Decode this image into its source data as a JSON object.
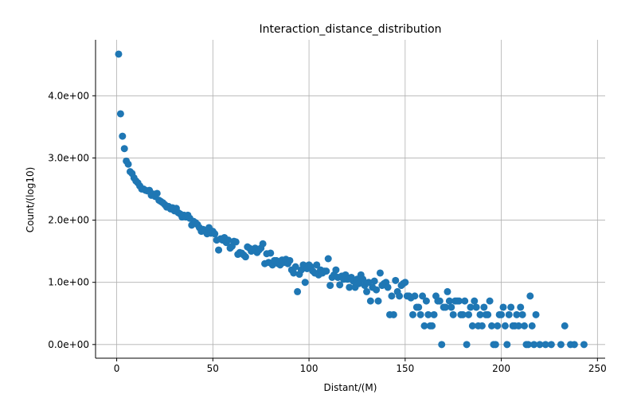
{
  "chart_data": {
    "type": "scatter",
    "title": "Interaction_distance_distribution",
    "xlabel": "Distant/(M)",
    "ylabel": "Count/(log10)",
    "xlim": [
      -11,
      254
    ],
    "ylim": [
      -0.22,
      4.9
    ],
    "x_ticks": [
      0,
      50,
      100,
      150,
      200,
      250
    ],
    "x_tick_labels": [
      "0",
      "50",
      "100",
      "150",
      "200",
      "250"
    ],
    "y_ticks": [
      0,
      1,
      2,
      3,
      4
    ],
    "y_tick_labels": [
      "0.0e+00",
      "1.0e+00",
      "2.0e+00",
      "3.0e+00",
      "4.0e+00"
    ],
    "grid": true,
    "marker_color": "#1f77b4",
    "points": [
      [
        1,
        4.67
      ],
      [
        2,
        3.71
      ],
      [
        3,
        3.35
      ],
      [
        4,
        3.15
      ],
      [
        5,
        2.95
      ],
      [
        6,
        2.9
      ],
      [
        7,
        2.78
      ],
      [
        8,
        2.75
      ],
      [
        9,
        2.68
      ],
      [
        10,
        2.63
      ],
      [
        11,
        2.6
      ],
      [
        12,
        2.55
      ],
      [
        13,
        2.5
      ],
      [
        14,
        2.5
      ],
      [
        15,
        2.48
      ],
      [
        16,
        2.47
      ],
      [
        17,
        2.48
      ],
      [
        18,
        2.4
      ],
      [
        19,
        2.42
      ],
      [
        20,
        2.38
      ],
      [
        21,
        2.43
      ],
      [
        22,
        2.32
      ],
      [
        23,
        2.3
      ],
      [
        24,
        2.28
      ],
      [
        25,
        2.25
      ],
      [
        26,
        2.21
      ],
      [
        27,
        2.22
      ],
      [
        28,
        2.18
      ],
      [
        29,
        2.2
      ],
      [
        30,
        2.15
      ],
      [
        31,
        2.19
      ],
      [
        32,
        2.12
      ],
      [
        33,
        2.1
      ],
      [
        34,
        2.05
      ],
      [
        35,
        2.08
      ],
      [
        36,
        2.05
      ],
      [
        37,
        2.08
      ],
      [
        38,
        2.03
      ],
      [
        39,
        1.92
      ],
      [
        40,
        1.98
      ],
      [
        41,
        1.96
      ],
      [
        42,
        1.93
      ],
      [
        43,
        1.88
      ],
      [
        44,
        1.82
      ],
      [
        45,
        1.85
      ],
      [
        46,
        1.82
      ],
      [
        47,
        1.78
      ],
      [
        48,
        1.88
      ],
      [
        49,
        1.79
      ],
      [
        50,
        1.82
      ],
      [
        51,
        1.78
      ],
      [
        52,
        1.68
      ],
      [
        53,
        1.52
      ],
      [
        54,
        1.7
      ],
      [
        55,
        1.68
      ],
      [
        56,
        1.72
      ],
      [
        57,
        1.64
      ],
      [
        58,
        1.68
      ],
      [
        59,
        1.55
      ],
      [
        60,
        1.58
      ],
      [
        61,
        1.66
      ],
      [
        62,
        1.65
      ],
      [
        63,
        1.45
      ],
      [
        64,
        1.48
      ],
      [
        65,
        1.47
      ],
      [
        66,
        1.44
      ],
      [
        67,
        1.41
      ],
      [
        68,
        1.57
      ],
      [
        69,
        1.55
      ],
      [
        70,
        1.5
      ],
      [
        71,
        1.53
      ],
      [
        72,
        1.55
      ],
      [
        73,
        1.48
      ],
      [
        74,
        1.52
      ],
      [
        75,
        1.55
      ],
      [
        76,
        1.62
      ],
      [
        77,
        1.3
      ],
      [
        78,
        1.46
      ],
      [
        79,
        1.32
      ],
      [
        80,
        1.47
      ],
      [
        81,
        1.28
      ],
      [
        82,
        1.35
      ],
      [
        83,
        1.35
      ],
      [
        84,
        1.3
      ],
      [
        85,
        1.28
      ],
      [
        86,
        1.36
      ],
      [
        87,
        1.32
      ],
      [
        88,
        1.37
      ],
      [
        89,
        1.3
      ],
      [
        90,
        1.35
      ],
      [
        91,
        1.2
      ],
      [
        92,
        1.15
      ],
      [
        93,
        1.25
      ],
      [
        94,
        0.85
      ],
      [
        95,
        1.13
      ],
      [
        96,
        1.2
      ],
      [
        97,
        1.28
      ],
      [
        98,
        1.0
      ],
      [
        99,
        1.22
      ],
      [
        100,
        1.28
      ],
      [
        101,
        1.25
      ],
      [
        102,
        1.18
      ],
      [
        103,
        1.15
      ],
      [
        104,
        1.28
      ],
      [
        105,
        1.12
      ],
      [
        106,
        1.2
      ],
      [
        107,
        1.15
      ],
      [
        108,
        1.18
      ],
      [
        109,
        1.18
      ],
      [
        110,
        1.38
      ],
      [
        111,
        0.95
      ],
      [
        112,
        1.08
      ],
      [
        113,
        1.12
      ],
      [
        114,
        1.2
      ],
      [
        115,
        1.08
      ],
      [
        116,
        0.96
      ],
      [
        117,
        1.1
      ],
      [
        118,
        1.05
      ],
      [
        119,
        1.12
      ],
      [
        120,
        1.05
      ],
      [
        121,
        0.92
      ],
      [
        122,
        1.08
      ],
      [
        123,
        1.02
      ],
      [
        124,
        0.92
      ],
      [
        125,
        1.05
      ],
      [
        126,
        0.98
      ],
      [
        127,
        1.12
      ],
      [
        128,
        1.05
      ],
      [
        129,
        0.95
      ],
      [
        130,
        0.85
      ],
      [
        131,
        1.0
      ],
      [
        132,
        0.7
      ],
      [
        133,
        0.92
      ],
      [
        134,
        1.02
      ],
      [
        135,
        0.88
      ],
      [
        136,
        0.7
      ],
      [
        137,
        1.15
      ],
      [
        138,
        0.95
      ],
      [
        139,
        0.98
      ],
      [
        140,
        1.0
      ],
      [
        141,
        0.92
      ],
      [
        142,
        0.48
      ],
      [
        143,
        0.78
      ],
      [
        144,
        0.48
      ],
      [
        145,
        1.03
      ],
      [
        146,
        0.85
      ],
      [
        147,
        0.78
      ],
      [
        148,
        0.95
      ],
      [
        149,
        0.98
      ],
      [
        150,
        1.0
      ],
      [
        151,
        0.78
      ],
      [
        152,
        0.78
      ],
      [
        153,
        0.75
      ],
      [
        154,
        0.48
      ],
      [
        155,
        0.78
      ],
      [
        156,
        0.6
      ],
      [
        157,
        0.6
      ],
      [
        158,
        0.48
      ],
      [
        159,
        0.78
      ],
      [
        160,
        0.3
      ],
      [
        161,
        0.7
      ],
      [
        162,
        0.48
      ],
      [
        163,
        0.3
      ],
      [
        164,
        0.3
      ],
      [
        165,
        0.48
      ],
      [
        166,
        0.78
      ],
      [
        167,
        0.7
      ],
      [
        168,
        0.7
      ],
      [
        169,
        0.0
      ],
      [
        170,
        0.6
      ],
      [
        171,
        0.6
      ],
      [
        172,
        0.85
      ],
      [
        173,
        0.7
      ],
      [
        174,
        0.6
      ],
      [
        175,
        0.48
      ],
      [
        176,
        0.7
      ],
      [
        177,
        0.7
      ],
      [
        178,
        0.7
      ],
      [
        179,
        0.48
      ],
      [
        180,
        0.48
      ],
      [
        181,
        0.7
      ],
      [
        182,
        0.0
      ],
      [
        183,
        0.48
      ],
      [
        184,
        0.6
      ],
      [
        185,
        0.3
      ],
      [
        186,
        0.7
      ],
      [
        187,
        0.6
      ],
      [
        188,
        0.3
      ],
      [
        189,
        0.48
      ],
      [
        190,
        0.3
      ],
      [
        191,
        0.6
      ],
      [
        192,
        0.48
      ],
      [
        193,
        0.48
      ],
      [
        194,
        0.7
      ],
      [
        195,
        0.3
      ],
      [
        196,
        0.0
      ],
      [
        197,
        0.0
      ],
      [
        198,
        0.3
      ],
      [
        199,
        0.48
      ],
      [
        200,
        0.48
      ],
      [
        201,
        0.6
      ],
      [
        202,
        0.3
      ],
      [
        203,
        0.0
      ],
      [
        204,
        0.48
      ],
      [
        205,
        0.6
      ],
      [
        206,
        0.3
      ],
      [
        207,
        0.3
      ],
      [
        208,
        0.48
      ],
      [
        209,
        0.3
      ],
      [
        210,
        0.6
      ],
      [
        211,
        0.48
      ],
      [
        212,
        0.3
      ],
      [
        213,
        0.0
      ],
      [
        214,
        0.0
      ],
      [
        215,
        0.78
      ],
      [
        216,
        0.3
      ],
      [
        217,
        0.0
      ],
      [
        218,
        0.48
      ],
      [
        220,
        0.0
      ],
      [
        223,
        0.0
      ],
      [
        226,
        0.0
      ],
      [
        231,
        0.0
      ],
      [
        233,
        0.3
      ],
      [
        236,
        0.0
      ],
      [
        238,
        0.0
      ],
      [
        243,
        0.0
      ]
    ]
  }
}
